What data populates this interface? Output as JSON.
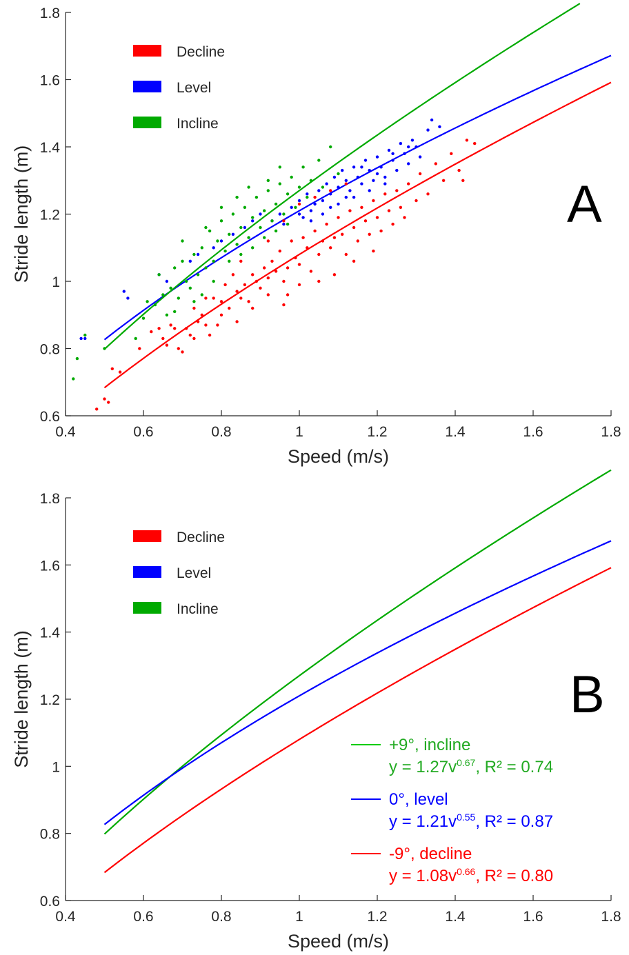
{
  "chart_data": [
    {
      "panel": "A",
      "type": "scatter",
      "xlabel": "Speed (m/s)",
      "ylabel": "Stride length (m)",
      "xlim": [
        0.4,
        1.8
      ],
      "ylim": [
        0.6,
        1.8
      ],
      "xticks": [
        "0.4",
        "0.6",
        "0.8",
        "1",
        "1.2",
        "1.4",
        "1.6",
        "1.8"
      ],
      "yticks": [
        "0.6",
        "0.8",
        "1",
        "1.2",
        "1.4",
        "1.6",
        "1.8"
      ],
      "legend_position": "top-left",
      "legend": [
        "Decline",
        "Level",
        "Incline"
      ],
      "series": [
        {
          "name": "Decline",
          "color": "#ff0000",
          "fit": {
            "a": 1.08,
            "b": 0.66,
            "x_range": [
              0.5,
              1.8
            ]
          },
          "points": [
            [
              0.48,
              0.62
            ],
            [
              0.5,
              0.65
            ],
            [
              0.51,
              0.64
            ],
            [
              0.52,
              0.74
            ],
            [
              0.54,
              0.73
            ],
            [
              0.59,
              0.8
            ],
            [
              0.62,
              0.85
            ],
            [
              0.64,
              0.86
            ],
            [
              0.65,
              0.83
            ],
            [
              0.66,
              0.81
            ],
            [
              0.67,
              0.87
            ],
            [
              0.68,
              0.86
            ],
            [
              0.69,
              0.8
            ],
            [
              0.7,
              0.79
            ],
            [
              0.71,
              0.86
            ],
            [
              0.72,
              0.84
            ],
            [
              0.73,
              0.83
            ],
            [
              0.74,
              0.88
            ],
            [
              0.75,
              0.9
            ],
            [
              0.76,
              0.87
            ],
            [
              0.77,
              0.84
            ],
            [
              0.78,
              0.95
            ],
            [
              0.79,
              0.87
            ],
            [
              0.8,
              0.94
            ],
            [
              0.81,
              0.99
            ],
            [
              0.82,
              0.92
            ],
            [
              0.83,
              1.02
            ],
            [
              0.84,
              0.97
            ],
            [
              0.85,
              0.95
            ],
            [
              0.86,
              0.99
            ],
            [
              0.87,
              0.94
            ],
            [
              0.88,
              1.02
            ],
            [
              0.89,
              1.0
            ],
            [
              0.9,
              0.98
            ],
            [
              0.91,
              1.04
            ],
            [
              0.92,
              1.01
            ],
            [
              0.93,
              1.06
            ],
            [
              0.94,
              1.03
            ],
            [
              0.95,
              1.09
            ],
            [
              0.96,
              1.0
            ],
            [
              0.97,
              1.04
            ],
            [
              0.98,
              1.12
            ],
            [
              0.99,
              1.07
            ],
            [
              1.0,
              1.05
            ],
            [
              1.01,
              1.13
            ],
            [
              1.02,
              1.1
            ],
            [
              1.03,
              1.03
            ],
            [
              1.04,
              1.15
            ],
            [
              1.05,
              1.08
            ],
            [
              1.06,
              1.12
            ],
            [
              1.07,
              1.17
            ],
            [
              1.08,
              1.1
            ],
            [
              1.09,
              1.13
            ],
            [
              1.1,
              1.19
            ],
            [
              1.11,
              1.14
            ],
            [
              1.12,
              1.08
            ],
            [
              1.13,
              1.21
            ],
            [
              1.14,
              1.16
            ],
            [
              1.15,
              1.12
            ],
            [
              1.16,
              1.22
            ],
            [
              1.17,
              1.18
            ],
            [
              1.18,
              1.14
            ],
            [
              1.19,
              1.24
            ],
            [
              1.2,
              1.19
            ],
            [
              1.21,
              1.15
            ],
            [
              1.22,
              1.26
            ],
            [
              1.23,
              1.21
            ],
            [
              1.24,
              1.17
            ],
            [
              1.25,
              1.27
            ],
            [
              1.26,
              1.22
            ],
            [
              1.27,
              1.19
            ],
            [
              1.28,
              1.29
            ],
            [
              1.3,
              1.24
            ],
            [
              1.31,
              1.32
            ],
            [
              1.33,
              1.26
            ],
            [
              1.35,
              1.35
            ],
            [
              1.37,
              1.3
            ],
            [
              1.39,
              1.38
            ],
            [
              1.41,
              1.33
            ],
            [
              1.43,
              1.42
            ],
            [
              1.45,
              1.41
            ],
            [
              1.42,
              1.3
            ],
            [
              0.97,
              0.96
            ],
            [
              1.0,
              0.99
            ],
            [
              1.05,
              1.0
            ],
            [
              1.09,
              1.02
            ],
            [
              1.14,
              1.06
            ],
            [
              1.19,
              1.09
            ],
            [
              0.85,
              1.06
            ],
            [
              0.92,
              1.12
            ],
            [
              0.96,
              1.18
            ],
            [
              1.0,
              1.23
            ],
            [
              1.04,
              1.25
            ],
            [
              1.08,
              1.27
            ],
            [
              1.12,
              1.29
            ],
            [
              0.73,
              0.92
            ],
            [
              0.76,
              0.95
            ],
            [
              0.8,
              0.9
            ],
            [
              0.84,
              0.88
            ],
            [
              0.88,
              0.92
            ],
            [
              0.92,
              0.96
            ],
            [
              0.96,
              0.93
            ]
          ]
        },
        {
          "name": "Level",
          "color": "#0000ff",
          "fit": {
            "a": 1.21,
            "b": 0.55,
            "x_range": [
              0.5,
              1.8
            ]
          },
          "points": [
            [
              0.44,
              0.83
            ],
            [
              0.45,
              0.83
            ],
            [
              0.55,
              0.97
            ],
            [
              0.56,
              0.95
            ],
            [
              0.64,
              1.02
            ],
            [
              0.66,
              1.0
            ],
            [
              0.72,
              1.06
            ],
            [
              0.74,
              1.08
            ],
            [
              0.78,
              1.1
            ],
            [
              0.8,
              1.12
            ],
            [
              0.83,
              1.14
            ],
            [
              0.86,
              1.16
            ],
            [
              0.88,
              1.18
            ],
            [
              0.9,
              1.2
            ],
            [
              0.93,
              1.18
            ],
            [
              0.95,
              1.2
            ],
            [
              0.98,
              1.22
            ],
            [
              1.0,
              1.24
            ],
            [
              1.02,
              1.26
            ],
            [
              1.03,
              1.21
            ],
            [
              1.05,
              1.27
            ],
            [
              1.06,
              1.24
            ],
            [
              1.07,
              1.29
            ],
            [
              1.08,
              1.26
            ],
            [
              1.09,
              1.31
            ],
            [
              1.1,
              1.28
            ],
            [
              1.11,
              1.33
            ],
            [
              1.12,
              1.3
            ],
            [
              1.13,
              1.27
            ],
            [
              1.14,
              1.34
            ],
            [
              1.15,
              1.31
            ],
            [
              1.16,
              1.29
            ],
            [
              1.17,
              1.36
            ],
            [
              1.18,
              1.33
            ],
            [
              1.19,
              1.3
            ],
            [
              1.2,
              1.37
            ],
            [
              1.21,
              1.34
            ],
            [
              1.22,
              1.31
            ],
            [
              1.23,
              1.39
            ],
            [
              1.24,
              1.36
            ],
            [
              1.25,
              1.33
            ],
            [
              1.26,
              1.41
            ],
            [
              1.27,
              1.38
            ],
            [
              1.28,
              1.35
            ],
            [
              1.29,
              1.42
            ],
            [
              1.3,
              1.4
            ],
            [
              1.31,
              1.37
            ],
            [
              1.33,
              1.45
            ],
            [
              1.34,
              1.48
            ],
            [
              1.36,
              1.46
            ],
            [
              1.03,
              1.18
            ],
            [
              1.06,
              1.2
            ],
            [
              1.1,
              1.23
            ],
            [
              1.14,
              1.25
            ],
            [
              1.18,
              1.27
            ],
            [
              1.22,
              1.29
            ],
            [
              1.0,
              1.2
            ],
            [
              1.04,
              1.23
            ],
            [
              1.08,
              1.22
            ],
            [
              1.12,
              1.25
            ],
            [
              1.16,
              1.34
            ],
            [
              1.2,
              1.32
            ],
            [
              1.24,
              1.38
            ],
            [
              1.28,
              1.4
            ],
            [
              0.96,
              1.17
            ],
            [
              1.01,
              1.19
            ]
          ]
        },
        {
          "name": "Incline",
          "color": "#00aa00",
          "fit": {
            "a": 1.27,
            "b": 0.67,
            "x_range": [
              0.5,
              1.72
            ]
          },
          "points": [
            [
              0.42,
              0.71
            ],
            [
              0.43,
              0.77
            ],
            [
              0.45,
              0.84
            ],
            [
              0.5,
              0.8
            ],
            [
              0.58,
              0.83
            ],
            [
              0.61,
              0.94
            ],
            [
              0.64,
              1.02
            ],
            [
              0.65,
              0.96
            ],
            [
              0.66,
              0.9
            ],
            [
              0.67,
              0.98
            ],
            [
              0.68,
              1.04
            ],
            [
              0.69,
              0.95
            ],
            [
              0.7,
              1.06
            ],
            [
              0.71,
              1.0
            ],
            [
              0.72,
              0.98
            ],
            [
              0.73,
              1.08
            ],
            [
              0.74,
              1.02
            ],
            [
              0.75,
              1.1
            ],
            [
              0.76,
              1.04
            ],
            [
              0.77,
              1.15
            ],
            [
              0.78,
              1.06
            ],
            [
              0.79,
              1.12
            ],
            [
              0.8,
              1.18
            ],
            [
              0.81,
              1.09
            ],
            [
              0.82,
              1.14
            ],
            [
              0.83,
              1.2
            ],
            [
              0.84,
              1.11
            ],
            [
              0.85,
              1.16
            ],
            [
              0.86,
              1.22
            ],
            [
              0.87,
              1.13
            ],
            [
              0.88,
              1.19
            ],
            [
              0.89,
              1.25
            ],
            [
              0.9,
              1.16
            ],
            [
              0.91,
              1.21
            ],
            [
              0.92,
              1.27
            ],
            [
              0.93,
              1.18
            ],
            [
              0.94,
              1.23
            ],
            [
              0.95,
              1.29
            ],
            [
              0.96,
              1.2
            ],
            [
              0.97,
              1.26
            ],
            [
              0.98,
              1.31
            ],
            [
              0.99,
              1.22
            ],
            [
              1.0,
              1.28
            ],
            [
              1.01,
              1.34
            ],
            [
              1.02,
              1.25
            ],
            [
              1.03,
              1.3
            ],
            [
              1.05,
              1.36
            ],
            [
              1.06,
              1.28
            ],
            [
              1.08,
              1.4
            ],
            [
              1.1,
              1.32
            ],
            [
              0.73,
              0.94
            ],
            [
              0.75,
              0.96
            ],
            [
              0.78,
              1.0
            ],
            [
              0.82,
              1.06
            ],
            [
              0.85,
              1.08
            ],
            [
              0.88,
              1.1
            ],
            [
              0.91,
              1.13
            ],
            [
              0.94,
              1.15
            ],
            [
              0.97,
              1.17
            ],
            [
              0.8,
              1.22
            ],
            [
              0.84,
              1.25
            ],
            [
              0.87,
              1.28
            ],
            [
              0.92,
              1.3
            ],
            [
              0.95,
              1.34
            ],
            [
              0.76,
              1.16
            ],
            [
              0.7,
              1.12
            ],
            [
              0.68,
              0.91
            ],
            [
              0.63,
              0.93
            ],
            [
              0.6,
              0.89
            ]
          ]
        }
      ],
      "annotation": "A"
    },
    {
      "panel": "B",
      "type": "line",
      "xlabel": "Speed (m/s)",
      "ylabel": "Stride length (m)",
      "xlim": [
        0.4,
        1.8
      ],
      "ylim": [
        0.6,
        1.8
      ],
      "xticks": [
        "0.4",
        "0.6",
        "0.8",
        "1",
        "1.2",
        "1.4",
        "1.6",
        "1.8"
      ],
      "yticks": [
        "0.6",
        "0.8",
        "1",
        "1.2",
        "1.4",
        "1.6",
        "1.8"
      ],
      "legend_position": "top-left",
      "legend": [
        "Decline",
        "Level",
        "Incline"
      ],
      "series": [
        {
          "name": "+9°, incline",
          "color": "#00aa00",
          "fit": {
            "a": 1.27,
            "b": 0.67,
            "x_range": [
              0.5,
              1.8
            ]
          },
          "equation_prefix": "y = 1.27v",
          "exponent": "0.67",
          "r2_text": ", R² = 0.74"
        },
        {
          "name": "0°, level",
          "color": "#0000ff",
          "fit": {
            "a": 1.21,
            "b": 0.55,
            "x_range": [
              0.5,
              1.8
            ]
          },
          "equation_prefix": "y = 1.21v",
          "exponent": "0.55",
          "r2_text": ", R² = 0.87"
        },
        {
          "name": "-9°, decline",
          "color": "#ff0000",
          "fit": {
            "a": 1.08,
            "b": 0.66,
            "x_range": [
              0.5,
              1.8
            ]
          },
          "equation_prefix": "y = 1.08v",
          "exponent": "0.66",
          "r2_text": ", R² = 0.80"
        }
      ],
      "annotation": "B"
    }
  ],
  "legend_colors": {
    "Decline": "#ff0000",
    "Level": "#0000ff",
    "Incline": "#00aa00"
  },
  "fit_line_colors": {
    "incline": "#00cc00",
    "level": "#0000ff",
    "decline": "#ff0000"
  }
}
